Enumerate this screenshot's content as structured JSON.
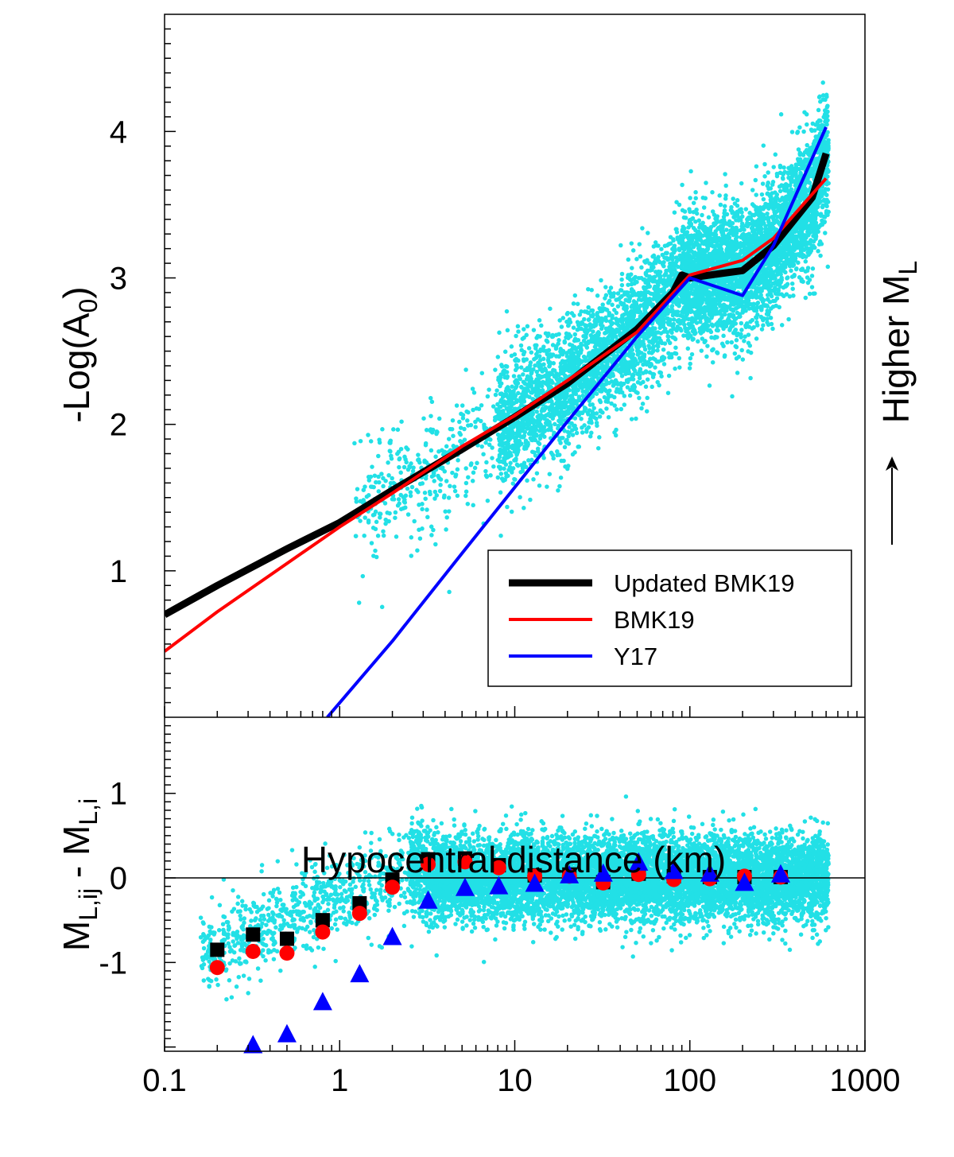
{
  "figure": {
    "xlabel": "Hypocentral distance (km)",
    "side_note": "Higher M",
    "side_note_subscript": "L"
  },
  "chart_data": [
    {
      "type": "line",
      "panel": "top",
      "ylabel": "-Log(A",
      "ylabel_subscript": "0",
      "ylabel_suffix": ")",
      "x_scale": "log",
      "xlim": [
        0.1,
        1000
      ],
      "ylim": [
        0,
        4.8
      ],
      "x_ticks": [
        0.1,
        1,
        10,
        100,
        1000
      ],
      "x_tick_labels": [
        "0.1",
        "1",
        "10",
        "100",
        "1000"
      ],
      "y_ticks": [
        1,
        2,
        3,
        4
      ],
      "y_tick_labels": [
        "1",
        "2",
        "3",
        "4"
      ],
      "grid": false,
      "legend_position": "bottom-right",
      "series": [
        {
          "name": "Updated BMK19",
          "color": "#000000",
          "x": [
            0.1,
            0.2,
            0.5,
            1,
            2,
            5,
            10,
            20,
            50,
            80,
            90,
            100,
            150,
            200,
            300,
            500,
            600
          ],
          "y": [
            0.7,
            0.9,
            1.15,
            1.33,
            1.55,
            1.83,
            2.05,
            2.28,
            2.65,
            2.9,
            3.02,
            3.0,
            3.03,
            3.05,
            3.22,
            3.55,
            3.85
          ]
        },
        {
          "name": "BMK19",
          "color": "#ff0000",
          "x": [
            0.1,
            0.2,
            0.5,
            1,
            2,
            5,
            10,
            20,
            50,
            100,
            200,
            300,
            600
          ],
          "y": [
            0.45,
            0.72,
            1.05,
            1.3,
            1.53,
            1.85,
            2.06,
            2.3,
            2.63,
            3.02,
            3.12,
            3.27,
            3.68
          ]
        },
        {
          "name": "Y17",
          "color": "#0000ff",
          "x": [
            0.85,
            2,
            5,
            10,
            20,
            50,
            100,
            200,
            300,
            600
          ],
          "y": [
            0.0,
            0.52,
            1.12,
            1.57,
            2.02,
            2.6,
            3.0,
            2.88,
            3.22,
            4.03
          ]
        }
      ],
      "scatter": {
        "color": "#22e0e6"
      }
    },
    {
      "type": "scatter",
      "panel": "bottom",
      "ylabel": "M",
      "ylabel_parts": [
        "M",
        "L,ij",
        " - M",
        "L,i"
      ],
      "x_scale": "log",
      "xlim": [
        0.1,
        1000
      ],
      "ylim": [
        -2.05,
        1.9
      ],
      "y_ticks": [
        -1,
        0,
        1
      ],
      "y_tick_labels": [
        "-1",
        "0",
        "1"
      ],
      "reference_line": 0,
      "grid": false,
      "series": [
        {
          "name": "Updated BMK19",
          "marker": "square",
          "color": "#000000",
          "x": [
            0.2,
            0.32,
            0.5,
            0.8,
            1.3,
            2.0,
            3.2,
            5.2,
            8.1,
            13,
            20.5,
            32,
            51,
            81,
            130,
            205,
            330
          ],
          "y": [
            -0.85,
            -0.67,
            -0.72,
            -0.5,
            -0.3,
            -0.02,
            0.22,
            0.23,
            0.15,
            0.03,
            0.04,
            -0.05,
            0.05,
            0.02,
            0.01,
            0.01,
            0.01
          ]
        },
        {
          "name": "BMK19",
          "marker": "circle",
          "color": "#ff0000",
          "x": [
            0.2,
            0.32,
            0.5,
            0.8,
            1.3,
            2.0,
            3.2,
            5.2,
            8.1,
            13,
            20.5,
            32,
            51,
            81,
            130,
            205,
            330
          ],
          "y": [
            -1.06,
            -0.87,
            -0.89,
            -0.64,
            -0.42,
            -0.11,
            0.16,
            0.19,
            0.12,
            0.02,
            0.02,
            -0.06,
            0.04,
            -0.02,
            -0.01,
            0.02,
            0.01
          ]
        },
        {
          "name": "Y17",
          "marker": "triangle",
          "color": "#0000ff",
          "x": [
            0.32,
            0.5,
            0.8,
            1.3,
            2.0,
            3.2,
            5.2,
            8.1,
            13,
            20.5,
            32,
            51,
            81,
            130,
            205,
            330
          ],
          "y": [
            -1.98,
            -1.85,
            -1.47,
            -1.14,
            -0.7,
            -0.27,
            -0.12,
            -0.1,
            -0.07,
            0.03,
            0.05,
            0.18,
            0.08,
            0.05,
            -0.06,
            0.04
          ]
        }
      ],
      "scatter": {
        "color": "#22e0e6"
      }
    }
  ]
}
